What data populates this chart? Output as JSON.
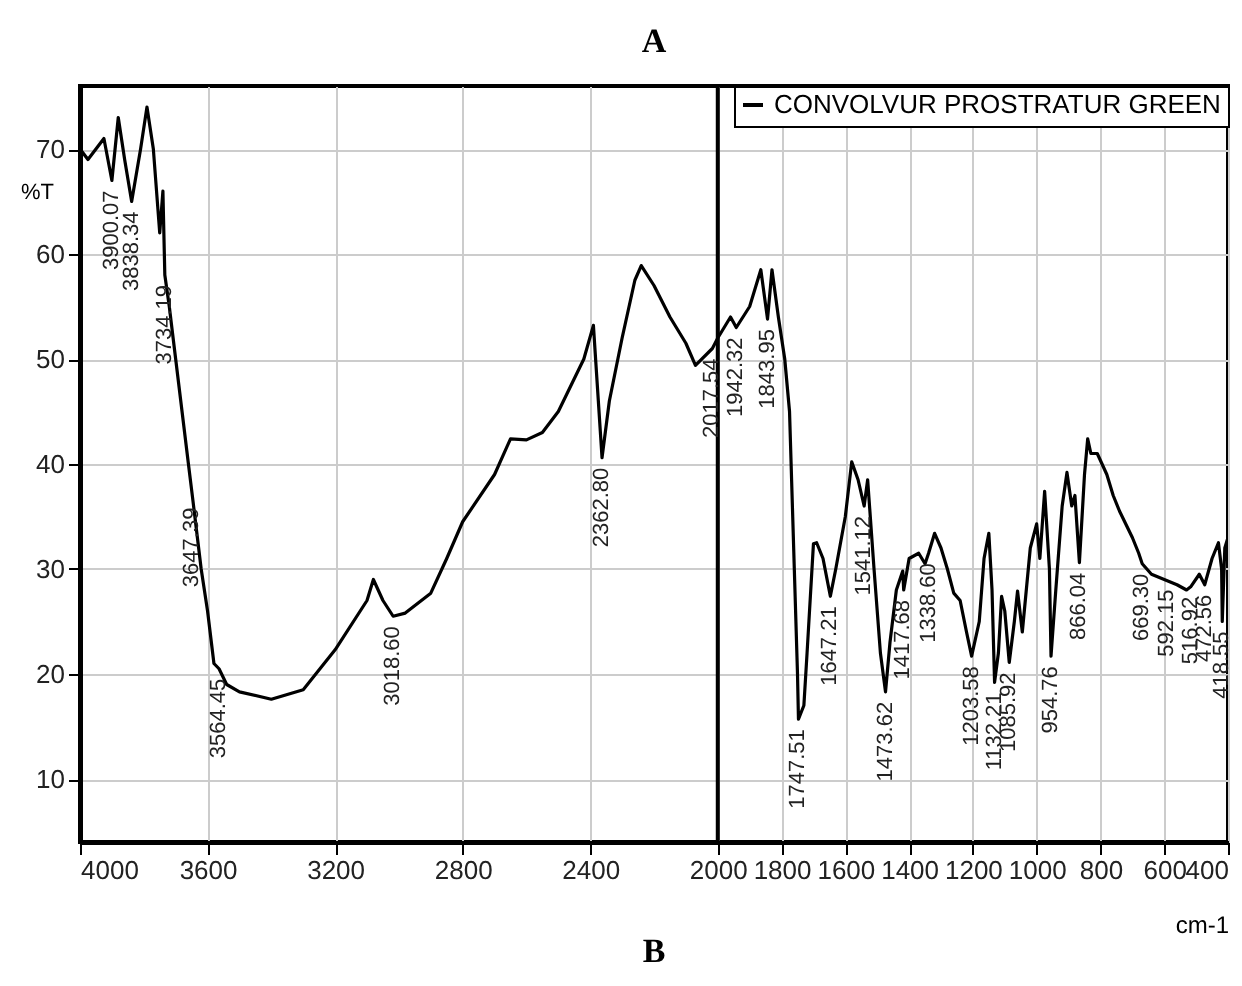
{
  "chart_data": {
    "type": "line",
    "title": "A",
    "xlabel": "cm-1",
    "ylabel": "%T",
    "xlim": [
      4000,
      400
    ],
    "ylim": [
      4,
      76
    ],
    "xticks": [
      4000,
      3600,
      3200,
      2800,
      2400,
      2000,
      1800,
      1600,
      1400,
      1200,
      1000,
      800,
      600,
      400
    ],
    "yticks": [
      10,
      20,
      30,
      40,
      50,
      60,
      70
    ],
    "grid": true,
    "legend": "top right",
    "ref_lines": [
      {
        "axis": "x",
        "value": 2000,
        "color": "#000000"
      }
    ],
    "series": [
      {
        "name": "CONVOLVUR PROSTRATUR GREEN",
        "color": "#000000",
        "x": [
          4000,
          3975,
          3950,
          3925,
          3900,
          3880,
          3860,
          3838,
          3810,
          3790,
          3770,
          3750,
          3740,
          3734,
          3720,
          3700,
          3680,
          3660,
          3647,
          3620,
          3600,
          3580,
          3564,
          3540,
          3500,
          3400,
          3300,
          3200,
          3100,
          3080,
          3050,
          3018,
          2980,
          2900,
          2850,
          2800,
          2700,
          2650,
          2600,
          2550,
          2500,
          2420,
          2390,
          2363,
          2340,
          2300,
          2260,
          2240,
          2200,
          2150,
          2100,
          2070,
          2017,
          2000,
          1960,
          1942,
          1900,
          1865,
          1844,
          1830,
          1810,
          1790,
          1775,
          1760,
          1750,
          1747,
          1730,
          1720,
          1700,
          1690,
          1670,
          1647,
          1630,
          1600,
          1580,
          1560,
          1541,
          1530,
          1510,
          1490,
          1474,
          1460,
          1440,
          1420,
          1417,
          1400,
          1370,
          1350,
          1339,
          1320,
          1300,
          1280,
          1260,
          1240,
          1220,
          1204,
          1180,
          1165,
          1150,
          1140,
          1132,
          1120,
          1110,
          1100,
          1086,
          1070,
          1060,
          1045,
          1020,
          1000,
          990,
          975,
          960,
          955,
          940,
          920,
          905,
          890,
          880,
          866,
          850,
          840,
          830,
          810,
          780,
          760,
          740,
          700,
          680,
          669,
          640,
          600,
          560,
          530,
          517,
          490,
          473,
          450,
          430,
          420,
          418,
          410,
          400
        ],
        "values": [
          70,
          69,
          70,
          71,
          67,
          73,
          69,
          65,
          70,
          74,
          70,
          62,
          66,
          58,
          55,
          50,
          45,
          40,
          36.8,
          30,
          26,
          21,
          20.5,
          19,
          18.3,
          17.6,
          18.5,
          22.3,
          27,
          29,
          27,
          25.5,
          25.8,
          27.7,
          31,
          34.5,
          39,
          42.4,
          42.3,
          43,
          45,
          50,
          53.2,
          40.6,
          46,
          52,
          57.5,
          58.9,
          57,
          54,
          51.5,
          49.4,
          51,
          52,
          54,
          53,
          55,
          58.5,
          53.8,
          58.5,
          54,
          50,
          45,
          30,
          20,
          15.7,
          17,
          22,
          32.4,
          32.5,
          31,
          27.4,
          30,
          35,
          40.2,
          38.5,
          36,
          38.5,
          30,
          22,
          18.3,
          23,
          28,
          29.8,
          28,
          31,
          31.5,
          30.5,
          31.5,
          33.4,
          32,
          30,
          27.7,
          27,
          24,
          21.7,
          25,
          31,
          33.4,
          28,
          19.2,
          22,
          27.4,
          26,
          21.1,
          25,
          27.9,
          24,
          32,
          34.3,
          31,
          37.4,
          30,
          21.7,
          28,
          36,
          39.2,
          36,
          37,
          30.6,
          39,
          42.4,
          41,
          41,
          39,
          37,
          35.5,
          33,
          31.5,
          30.5,
          29.5,
          29,
          28.5,
          28,
          28.3,
          29.5,
          28.5,
          31,
          32.5,
          30,
          25,
          32,
          33
        ]
      }
    ],
    "annotations": [
      {
        "text": "3900.07",
        "x": 3900.07,
        "y": 67
      },
      {
        "text": "3838.34",
        "x": 3838.34,
        "y": 65
      },
      {
        "text": "3734.19",
        "x": 3734.19,
        "y": 58
      },
      {
        "text": "3647.39",
        "x": 3647.39,
        "y": 36.8
      },
      {
        "text": "3564.45",
        "x": 3564.45,
        "y": 20.5
      },
      {
        "text": "3018.60",
        "x": 3018.6,
        "y": 25.5
      },
      {
        "text": "2362.80",
        "x": 2362.8,
        "y": 40.6
      },
      {
        "text": "2017.54",
        "x": 2017.54,
        "y": 51
      },
      {
        "text": "1942.32",
        "x": 1942.32,
        "y": 53
      },
      {
        "text": "1843.95",
        "x": 1843.95,
        "y": 53.8
      },
      {
        "text": "1747.51",
        "x": 1747.51,
        "y": 15.7
      },
      {
        "text": "1647.21",
        "x": 1647.21,
        "y": 27.4
      },
      {
        "text": "1541.12",
        "x": 1541.12,
        "y": 36
      },
      {
        "text": "1473.62",
        "x": 1473.62,
        "y": 18.3
      },
      {
        "text": "1417.68",
        "x": 1417.68,
        "y": 28
      },
      {
        "text": "1338.60",
        "x": 1338.6,
        "y": 31.5
      },
      {
        "text": "1203.58",
        "x": 1203.58,
        "y": 21.7
      },
      {
        "text": "1132.21",
        "x": 1132.21,
        "y": 19.2
      },
      {
        "text": "1085.92",
        "x": 1085.92,
        "y": 21.1
      },
      {
        "text": "954.76",
        "x": 954.76,
        "y": 21.7
      },
      {
        "text": "866.04",
        "x": 866.04,
        "y": 30.6
      },
      {
        "text": "669.30",
        "x": 669.3,
        "y": 30.5
      },
      {
        "text": "592.15",
        "x": 592.15,
        "y": 29
      },
      {
        "text": "516.92",
        "x": 516.92,
        "y": 28.3
      },
      {
        "text": "472.56",
        "x": 472.56,
        "y": 28.5
      },
      {
        "text": "418.55",
        "x": 418.55,
        "y": 25
      },
      "B"
    ]
  }
}
